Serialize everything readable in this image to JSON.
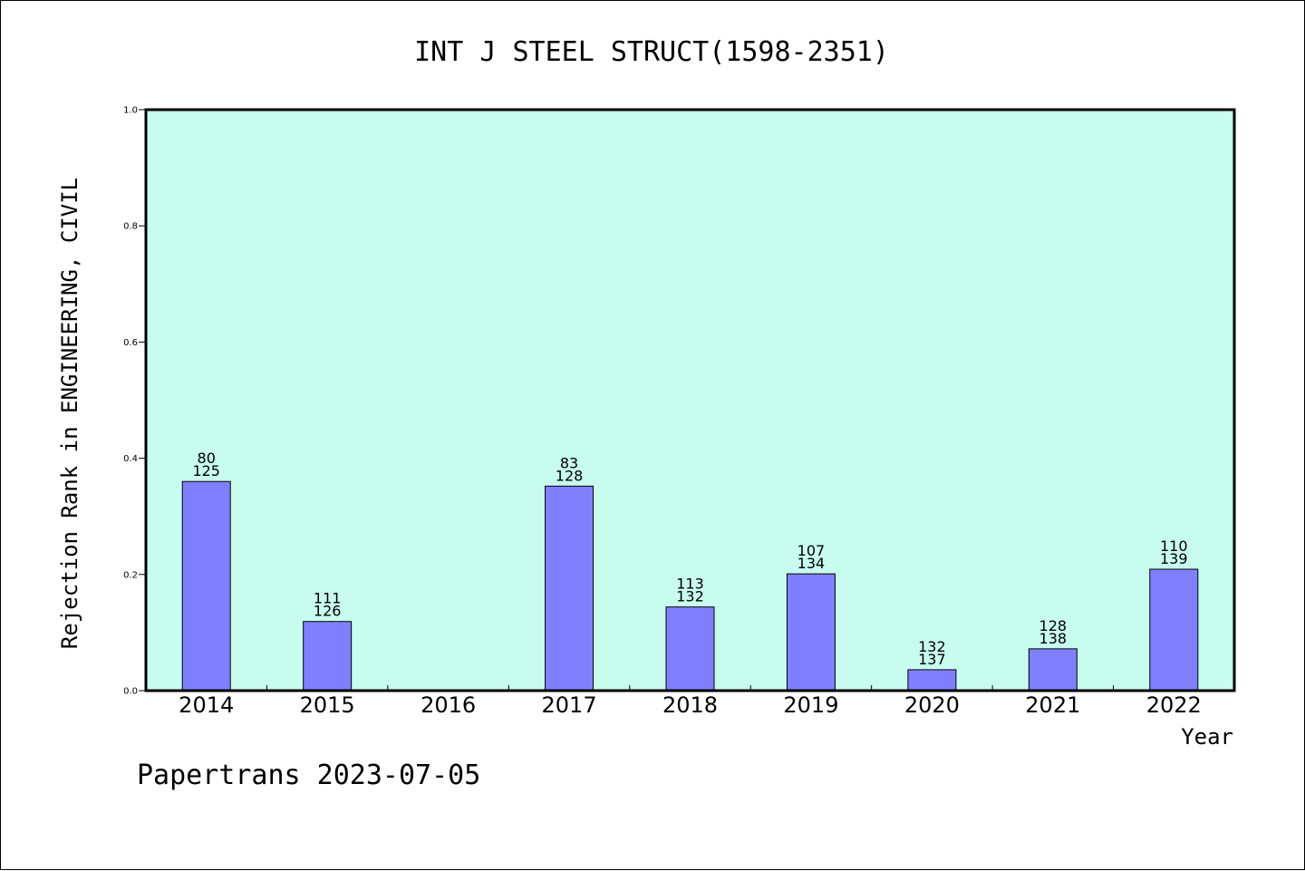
{
  "chart_data": {
    "type": "bar",
    "title": "INT J STEEL STRUCT(1598-2351)",
    "ylabel": "Rejection Rank in ENGINEERING, CIVIL",
    "xlabel": "Year",
    "ylim": [
      0,
      1.0
    ],
    "yticks": [
      0.0,
      0.2,
      0.4,
      0.6,
      0.8,
      1.0
    ],
    "ytick_labels": [
      "0.0",
      "0.2",
      "0.4",
      "0.6",
      "0.8",
      "1.0"
    ],
    "categories": [
      "2014",
      "2015",
      "2016",
      "2017",
      "2018",
      "2019",
      "2020",
      "2021",
      "2022"
    ],
    "values": [
      0.36,
      0.119,
      null,
      0.352,
      0.144,
      0.201,
      0.036,
      0.072,
      0.209
    ],
    "annotations": [
      [
        "80",
        "125"
      ],
      [
        "111",
        "126"
      ],
      null,
      [
        "83",
        "128"
      ],
      [
        "113",
        "132"
      ],
      [
        "107",
        "134"
      ],
      [
        "132",
        "137"
      ],
      [
        "128",
        "138"
      ],
      [
        "110",
        "139"
      ]
    ],
    "grid": false,
    "colors": {
      "plot_background": "#c8fcee",
      "bar_fill": "#8080ff",
      "bar_stroke": "#000000",
      "axis": "#000000"
    }
  },
  "footer": "Papertrans 2023-07-05"
}
